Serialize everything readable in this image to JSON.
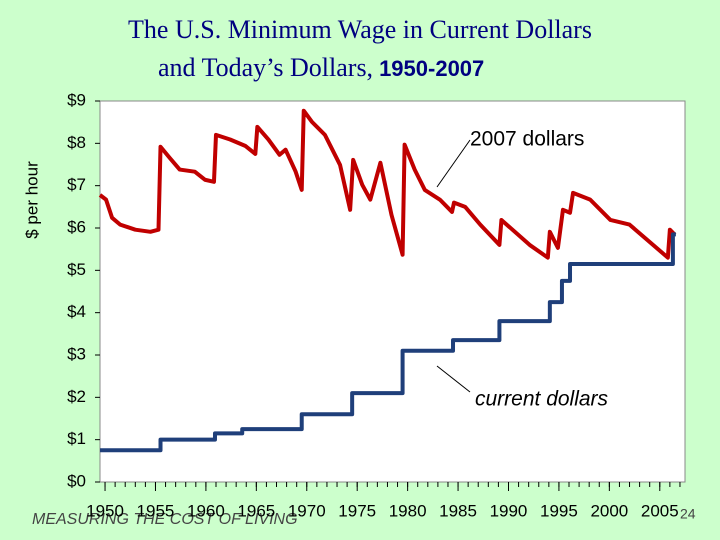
{
  "chart_data": {
    "type": "line",
    "title": [
      "The U.S. Minimum Wage in Current Dollars",
      "and Today’s Dollars,",
      "1950-2007"
    ],
    "ylabel": "$ per hour",
    "xlim": [
      1949.5,
      2007.5
    ],
    "ylim": [
      0,
      9
    ],
    "xticks": [
      1950,
      1955,
      1960,
      1965,
      1970,
      1975,
      1980,
      1985,
      1990,
      1995,
      2000,
      2005
    ],
    "xminorticks": [
      1950,
      1951,
      1952,
      1953,
      1954,
      1955,
      1956,
      1957,
      1958,
      1959,
      1960,
      1961,
      1962,
      1963,
      1964,
      1965,
      1966,
      1967,
      1968,
      1969,
      1970,
      1971,
      1972,
      1973,
      1974,
      1975,
      1976,
      1977,
      1978,
      1979,
      1980,
      1981,
      1982,
      1983,
      1984,
      1985,
      1986,
      1987,
      1988,
      1989,
      1990,
      1991,
      1992,
      1993,
      1994,
      1995,
      1996,
      1997,
      1998,
      1999,
      2000,
      2001,
      2002,
      2003,
      2004,
      2005,
      2006,
      2007
    ],
    "yticks": [
      {
        "value": 0,
        "label": "$0"
      },
      {
        "value": 1,
        "label": "$1"
      },
      {
        "value": 2,
        "label": "$2"
      },
      {
        "value": 3,
        "label": "$3"
      },
      {
        "value": 4,
        "label": "$4"
      },
      {
        "value": 5,
        "label": "$5"
      },
      {
        "value": 6,
        "label": "$6"
      },
      {
        "value": 7,
        "label": "$7"
      },
      {
        "value": 8,
        "label": "$8"
      },
      {
        "value": 9,
        "label": "$9"
      }
    ],
    "series": [
      {
        "name": "2007 dollars",
        "color": "#c00000",
        "x": [
          1949.5,
          1950.1,
          1950.7,
          1951.5,
          1953.0,
          1954.5,
          1955.3,
          1955.5,
          1956.4,
          1957.4,
          1958.9,
          1959.9,
          1960.8,
          1961.0,
          1962.4,
          1963.9,
          1964.9,
          1965.1,
          1966.2,
          1967.3,
          1967.9,
          1968.9,
          1969.5,
          1969.7,
          1970.5,
          1971.8,
          1973.3,
          1974.3,
          1974.6,
          1975.5,
          1976.3,
          1977.3,
          1978.4,
          1979.5,
          1979.7,
          1980.7,
          1981.7,
          1983.2,
          1984.4,
          1984.6,
          1985.7,
          1987.2,
          1989.1,
          1989.3,
          1992.1,
          1993.9,
          1994.1,
          1994.9,
          1995.4,
          1996.1,
          1996.4,
          1998.1,
          2000.1,
          2002.0,
          2005.8,
          2006.0,
          2006.5
        ],
        "values": [
          6.78,
          6.67,
          6.24,
          6.08,
          5.96,
          5.91,
          5.96,
          7.92,
          7.66,
          7.38,
          7.33,
          7.14,
          7.09,
          8.2,
          8.09,
          7.94,
          7.75,
          8.39,
          8.09,
          7.73,
          7.85,
          7.33,
          6.9,
          8.77,
          8.51,
          8.2,
          7.49,
          6.43,
          7.61,
          7.02,
          6.67,
          7.54,
          6.31,
          5.37,
          7.97,
          7.38,
          6.9,
          6.67,
          6.38,
          6.6,
          6.5,
          6.08,
          5.6,
          6.19,
          5.6,
          5.3,
          5.91,
          5.53,
          6.43,
          6.36,
          6.83,
          6.67,
          6.19,
          6.08,
          5.3,
          5.96,
          5.84
        ]
      },
      {
        "name": "current dollars",
        "color": "#1f3f7a",
        "step": true,
        "x": [
          1949.5,
          1955.5,
          1960.9,
          1963.6,
          1969.5,
          1974.5,
          1979.5,
          1984.5,
          1989.1,
          1994.1,
          1995.3,
          1996.1,
          2006.3
        ],
        "values": [
          0.75,
          1.0,
          1.15,
          1.25,
          1.6,
          2.1,
          3.1,
          3.35,
          3.8,
          4.25,
          4.75,
          5.15,
          5.85
        ]
      }
    ],
    "annotations": [
      "2007 dollars",
      "current dollars"
    ]
  },
  "footer": {
    "text": "MEASURING THE COST OF LIVING",
    "page": "24"
  }
}
